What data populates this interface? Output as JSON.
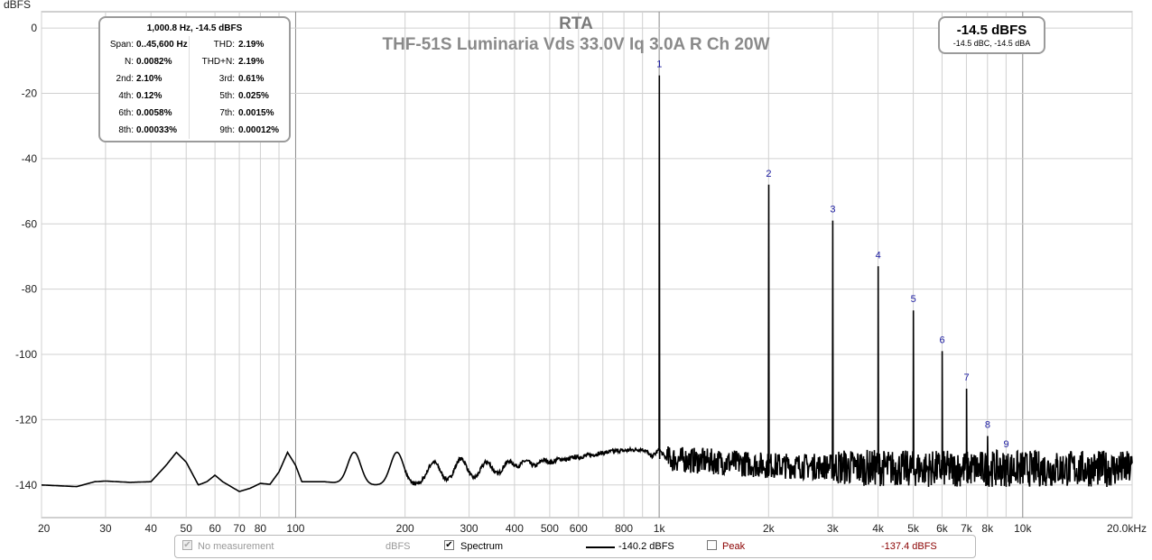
{
  "chart_data": {
    "type": "line",
    "title": "RTA",
    "subtitle": "THF-51S Luminaria Vds 33.0V Iq 3.0A R Ch 20W",
    "ylabel": "dBFS",
    "xlabel": "",
    "x_scale": "log",
    "xlim": [
      20,
      20000
    ],
    "ylim": [
      -150,
      5
    ],
    "y_ticks": [
      0,
      -20,
      -40,
      -60,
      -80,
      -100,
      -120,
      -140
    ],
    "y_tick_labels": [
      "0",
      "-20",
      "-40",
      "-60",
      "-80",
      "-100",
      "-120",
      "-140"
    ],
    "x_ticks": [
      20,
      30,
      40,
      50,
      60,
      70,
      80,
      100,
      200,
      300,
      400,
      500,
      600,
      800,
      1000,
      2000,
      3000,
      4000,
      5000,
      6000,
      7000,
      8000,
      10000,
      20000
    ],
    "x_tick_labels": [
      "20",
      "30",
      "40",
      "50",
      "60",
      "70",
      "80",
      "100",
      "200",
      "300",
      "400",
      "500",
      "600",
      "800",
      "1k",
      "2k",
      "3k",
      "4k",
      "5k",
      "6k",
      "7k",
      "8k",
      "10k",
      "20.0kHz"
    ],
    "grid": true,
    "series": [
      {
        "name": "Spectrum",
        "color": "#000000",
        "noise_floor": [
          [
            20,
            -140
          ],
          [
            25,
            -140.5
          ],
          [
            28,
            -139
          ],
          [
            30,
            -138.8
          ],
          [
            35,
            -139.2
          ],
          [
            40,
            -139
          ],
          [
            44,
            -134
          ],
          [
            47,
            -130
          ],
          [
            50,
            -133
          ],
          [
            54,
            -140
          ],
          [
            57,
            -139
          ],
          [
            60,
            -137
          ],
          [
            63,
            -139
          ],
          [
            70,
            -142
          ],
          [
            75,
            -141
          ],
          [
            80,
            -139.5
          ],
          [
            85,
            -139.8
          ],
          [
            90,
            -136
          ],
          [
            95,
            -130
          ],
          [
            100,
            -134
          ],
          [
            104,
            -139
          ],
          [
            120,
            -139
          ],
          [
            150,
            -140
          ],
          [
            200,
            -140
          ],
          [
            300,
            -140
          ],
          [
            500,
            -139.5
          ],
          [
            800,
            -139
          ],
          [
            950,
            -136
          ],
          [
            1000,
            -130
          ],
          [
            1050,
            -132
          ],
          [
            1500,
            -133
          ],
          [
            2000,
            -134
          ],
          [
            5000,
            -135
          ],
          [
            10000,
            -135
          ],
          [
            20000,
            -135
          ]
        ],
        "harmonics": [
          {
            "label": "1",
            "freq": 1000.8,
            "level": -14.5
          },
          {
            "label": "2",
            "freq": 2001.6,
            "level": -48
          },
          {
            "label": "3",
            "freq": 3002.4,
            "level": -59
          },
          {
            "label": "4",
            "freq": 4003.2,
            "level": -73
          },
          {
            "label": "5",
            "freq": 5004,
            "level": -86.5
          },
          {
            "label": "6",
            "freq": 6004.8,
            "level": -99
          },
          {
            "label": "7",
            "freq": 7005.6,
            "level": -110.5
          },
          {
            "label": "8",
            "freq": 8006.4,
            "level": -125
          },
          {
            "label": "9",
            "freq": 9007.2,
            "level": -131
          }
        ],
        "noise_peaks": [
          [
            47,
            -130
          ],
          [
            60,
            -137
          ],
          [
            95,
            -130
          ],
          [
            145,
            -130
          ],
          [
            190,
            -130
          ],
          [
            240,
            -133
          ],
          [
            285,
            -132
          ],
          [
            335,
            -133
          ],
          [
            385,
            -133
          ],
          [
            430,
            -133
          ],
          [
            480,
            -133
          ],
          [
            530,
            -133
          ],
          [
            580,
            -133
          ],
          [
            630,
            -133
          ],
          [
            680,
            -133
          ],
          [
            730,
            -133
          ],
          [
            780,
            -133
          ],
          [
            830,
            -133
          ],
          [
            880,
            -133
          ],
          [
            930,
            -132
          ]
        ]
      }
    ],
    "legend": "bottom"
  },
  "distortion_box": {
    "header": "1,000.8 Hz, -14.5 dBFS",
    "rows": [
      {
        "k1": "Span:",
        "v1": "0..45,600 Hz",
        "k2": "THD:",
        "v2": "2.19%"
      },
      {
        "k1": "N:",
        "v1": "0.0082%",
        "k2": "THD+N:",
        "v2": "2.19%"
      },
      {
        "k1": "2nd:",
        "v1": "2.10%",
        "k2": "3rd:",
        "v2": "0.61%"
      },
      {
        "k1": "4th:",
        "v1": "0.12%",
        "k2": "5th:",
        "v2": "0.025%"
      },
      {
        "k1": "6th:",
        "v1": "0.0058%",
        "k2": "7th:",
        "v2": "0.0015%"
      },
      {
        "k1": "8th:",
        "v1": "0.00033%",
        "k2": "9th:",
        "v2": "0.00012%"
      }
    ]
  },
  "level_box": {
    "main": "-14.5 dBFS",
    "sub": "-14.5 dBC, -14.5 dBA"
  },
  "legend_bar": {
    "no_measurement": "No measurement",
    "units": "dBFS",
    "spectrum_label": "Spectrum",
    "spectrum_value": "-140.2 dBFS",
    "peak_label": "Peak",
    "peak_value": "-137.4 dBFS",
    "peak_color": "#8b0000"
  }
}
